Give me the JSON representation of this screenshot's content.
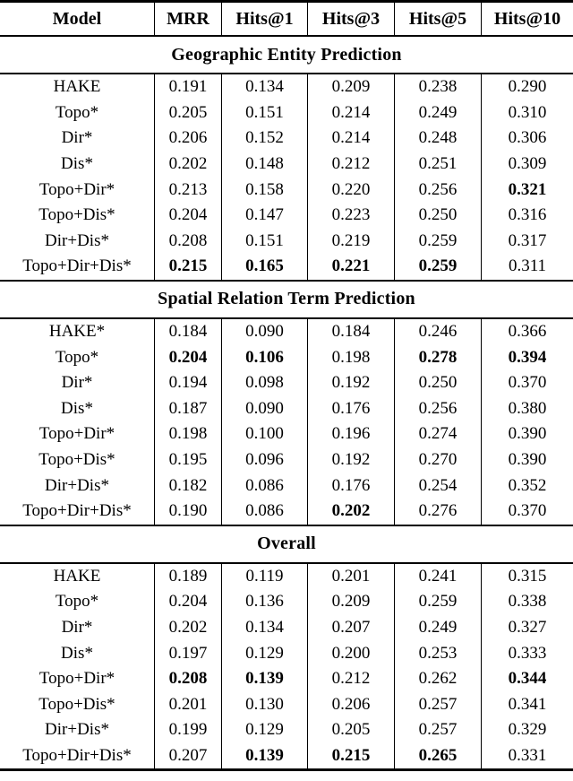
{
  "table": {
    "columns": [
      "Model",
      "MRR",
      "Hits@1",
      "Hits@3",
      "Hits@5",
      "Hits@10"
    ],
    "sections": [
      {
        "title": "Geographic Entity Prediction",
        "rows": [
          {
            "model": "HAKE",
            "cells": [
              {
                "t": "0.191"
              },
              {
                "t": "0.134"
              },
              {
                "t": "0.209"
              },
              {
                "t": "0.238"
              },
              {
                "t": "0.290"
              }
            ]
          },
          {
            "model": "Topo*",
            "cells": [
              {
                "t": "0.205"
              },
              {
                "t": "0.151"
              },
              {
                "t": "0.214"
              },
              {
                "t": "0.249"
              },
              {
                "t": "0.310"
              }
            ]
          },
          {
            "model": "Dir*",
            "cells": [
              {
                "t": "0.206"
              },
              {
                "t": "0.152"
              },
              {
                "t": "0.214"
              },
              {
                "t": "0.248"
              },
              {
                "t": "0.306"
              }
            ]
          },
          {
            "model": "Dis*",
            "cells": [
              {
                "t": "0.202"
              },
              {
                "t": "0.148"
              },
              {
                "t": "0.212"
              },
              {
                "t": "0.251"
              },
              {
                "t": "0.309"
              }
            ]
          },
          {
            "model": "Topo+Dir*",
            "cells": [
              {
                "t": "0.213"
              },
              {
                "t": "0.158"
              },
              {
                "t": "0.220"
              },
              {
                "t": "0.256"
              },
              {
                "t": "0.321",
                "b": true
              }
            ]
          },
          {
            "model": "Topo+Dis*",
            "cells": [
              {
                "t": "0.204"
              },
              {
                "t": "0.147"
              },
              {
                "t": "0.223"
              },
              {
                "t": "0.250"
              },
              {
                "t": "0.316"
              }
            ]
          },
          {
            "model": "Dir+Dis*",
            "cells": [
              {
                "t": "0.208"
              },
              {
                "t": "0.151"
              },
              {
                "t": "0.219"
              },
              {
                "t": "0.259"
              },
              {
                "t": "0.317"
              }
            ]
          },
          {
            "model": "Topo+Dir+Dis*",
            "cells": [
              {
                "t": "0.215",
                "b": true
              },
              {
                "t": "0.165",
                "b": true
              },
              {
                "t": "0.221",
                "b": true
              },
              {
                "t": "0.259",
                "b": true
              },
              {
                "t": "0.311"
              }
            ]
          }
        ]
      },
      {
        "title": "Spatial Relation Term Prediction",
        "rows": [
          {
            "model": "HAKE*",
            "cells": [
              {
                "t": "0.184"
              },
              {
                "t": "0.090"
              },
              {
                "t": "0.184"
              },
              {
                "t": "0.246"
              },
              {
                "t": "0.366"
              }
            ]
          },
          {
            "model": "Topo*",
            "cells": [
              {
                "t": "0.204",
                "b": true
              },
              {
                "t": "0.106",
                "b": true
              },
              {
                "t": "0.198"
              },
              {
                "t": "0.278",
                "b": true
              },
              {
                "t": "0.394",
                "b": true
              }
            ]
          },
          {
            "model": "Dir*",
            "cells": [
              {
                "t": "0.194"
              },
              {
                "t": "0.098"
              },
              {
                "t": "0.192"
              },
              {
                "t": "0.250"
              },
              {
                "t": "0.370"
              }
            ]
          },
          {
            "model": "Dis*",
            "cells": [
              {
                "t": "0.187"
              },
              {
                "t": "0.090"
              },
              {
                "t": "0.176"
              },
              {
                "t": "0.256"
              },
              {
                "t": "0.380"
              }
            ]
          },
          {
            "model": "Topo+Dir*",
            "cells": [
              {
                "t": "0.198"
              },
              {
                "t": "0.100"
              },
              {
                "t": "0.196"
              },
              {
                "t": "0.274"
              },
              {
                "t": "0.390"
              }
            ]
          },
          {
            "model": "Topo+Dis*",
            "cells": [
              {
                "t": "0.195"
              },
              {
                "t": "0.096"
              },
              {
                "t": "0.192"
              },
              {
                "t": "0.270"
              },
              {
                "t": "0.390"
              }
            ]
          },
          {
            "model": "Dir+Dis*",
            "cells": [
              {
                "t": "0.182"
              },
              {
                "t": "0.086"
              },
              {
                "t": "0.176"
              },
              {
                "t": "0.254"
              },
              {
                "t": "0.352"
              }
            ]
          },
          {
            "model": "Topo+Dir+Dis*",
            "cells": [
              {
                "t": "0.190"
              },
              {
                "t": "0.086"
              },
              {
                "t": "0.202",
                "b": true
              },
              {
                "t": "0.276"
              },
              {
                "t": "0.370"
              }
            ]
          }
        ]
      },
      {
        "title": "Overall",
        "rows": [
          {
            "model": "HAKE",
            "cells": [
              {
                "t": "0.189"
              },
              {
                "t": "0.119"
              },
              {
                "t": "0.201"
              },
              {
                "t": "0.241"
              },
              {
                "t": "0.315"
              }
            ]
          },
          {
            "model": "Topo*",
            "cells": [
              {
                "t": "0.204"
              },
              {
                "t": "0.136"
              },
              {
                "t": "0.209"
              },
              {
                "t": "0.259"
              },
              {
                "t": "0.338"
              }
            ]
          },
          {
            "model": "Dir*",
            "cells": [
              {
                "t": "0.202"
              },
              {
                "t": "0.134"
              },
              {
                "t": "0.207"
              },
              {
                "t": "0.249"
              },
              {
                "t": "0.327"
              }
            ]
          },
          {
            "model": "Dis*",
            "cells": [
              {
                "t": "0.197"
              },
              {
                "t": "0.129"
              },
              {
                "t": "0.200"
              },
              {
                "t": "0.253"
              },
              {
                "t": "0.333"
              }
            ]
          },
          {
            "model": "Topo+Dir*",
            "cells": [
              {
                "t": "0.208",
                "b": true
              },
              {
                "t": "0.139",
                "b": true
              },
              {
                "t": "0.212"
              },
              {
                "t": "0.262"
              },
              {
                "t": "0.344",
                "b": true
              }
            ]
          },
          {
            "model": "Topo+Dis*",
            "cells": [
              {
                "t": "0.201"
              },
              {
                "t": "0.130"
              },
              {
                "t": "0.206"
              },
              {
                "t": "0.257"
              },
              {
                "t": "0.341"
              }
            ]
          },
          {
            "model": "Dir+Dis*",
            "cells": [
              {
                "t": "0.199"
              },
              {
                "t": "0.129"
              },
              {
                "t": "0.205"
              },
              {
                "t": "0.257"
              },
              {
                "t": "0.329"
              }
            ]
          },
          {
            "model": "Topo+Dir+Dis*",
            "cells": [
              {
                "t": "0.207"
              },
              {
                "t": "0.139",
                "b": true
              },
              {
                "t": "0.215",
                "b": true
              },
              {
                "t": "0.265",
                "b": true
              },
              {
                "t": "0.331"
              }
            ]
          }
        ]
      }
    ]
  }
}
